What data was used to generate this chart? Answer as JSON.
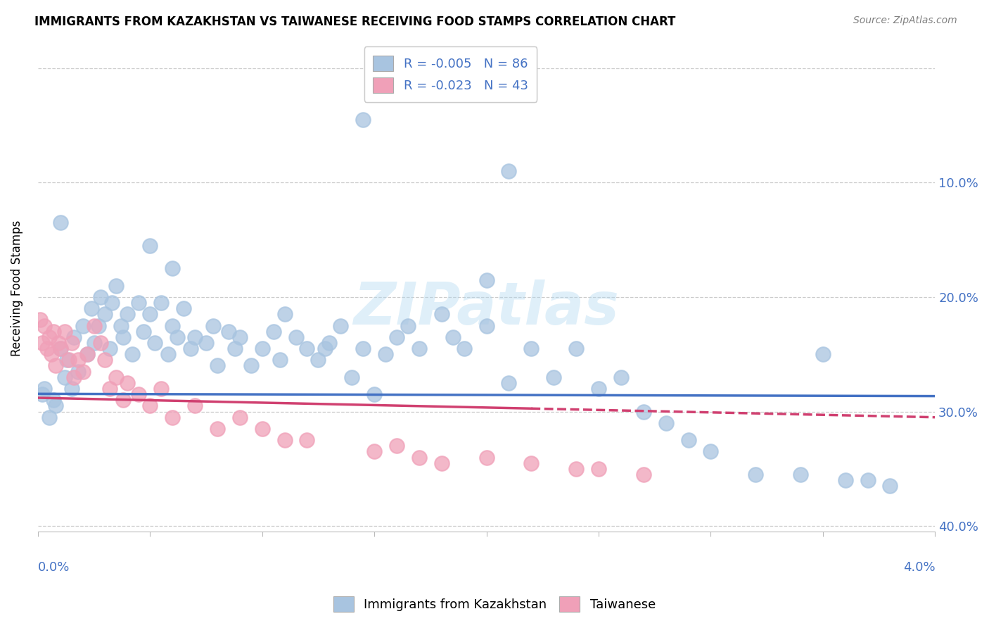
{
  "title": "IMMIGRANTS FROM KAZAKHSTAN VS TAIWANESE RECEIVING FOOD STAMPS CORRELATION CHART",
  "source": "Source: ZipAtlas.com",
  "ylabel": "Receiving Food Stamps",
  "legend_r1": "-0.005",
  "legend_n1": "86",
  "legend_r2": "-0.023",
  "legend_n2": "43",
  "legend_label1": "Immigrants from Kazakhstan",
  "legend_label2": "Taiwanese",
  "blue_color": "#a8c4e0",
  "pink_color": "#f0a0b8",
  "line_blue": "#4472c4",
  "line_pink": "#d04070",
  "xmin": 0.0,
  "xmax": 0.04,
  "ymin": -0.005,
  "ymax": 0.42,
  "ytick_vals": [
    0.0,
    0.1,
    0.2,
    0.3,
    0.4
  ],
  "ytick_labels": [
    "",
    "10.0%",
    "20.0%",
    "30.0%",
    "40.0%"
  ],
  "blue_x": [
    0.0002,
    0.0003,
    0.0005,
    0.0007,
    0.0008,
    0.001,
    0.0012,
    0.0013,
    0.0015,
    0.0016,
    0.0018,
    0.002,
    0.0022,
    0.0024,
    0.0025,
    0.0027,
    0.0028,
    0.003,
    0.0032,
    0.0033,
    0.0035,
    0.0037,
    0.0038,
    0.004,
    0.0042,
    0.0045,
    0.0047,
    0.005,
    0.0052,
    0.0055,
    0.0058,
    0.006,
    0.0062,
    0.0065,
    0.0068,
    0.007,
    0.0075,
    0.0078,
    0.008,
    0.0085,
    0.0088,
    0.009,
    0.0095,
    0.01,
    0.0105,
    0.0108,
    0.011,
    0.0115,
    0.012,
    0.0125,
    0.0128,
    0.013,
    0.0135,
    0.014,
    0.0145,
    0.015,
    0.0155,
    0.016,
    0.0165,
    0.017,
    0.018,
    0.0185,
    0.019,
    0.02,
    0.021,
    0.022,
    0.023,
    0.024,
    0.025,
    0.026,
    0.027,
    0.028,
    0.029,
    0.03,
    0.032,
    0.034,
    0.036,
    0.038,
    0.035,
    0.037,
    0.0145,
    0.021,
    0.001,
    0.005,
    0.02,
    0.006
  ],
  "blue_y": [
    0.115,
    0.12,
    0.095,
    0.11,
    0.105,
    0.155,
    0.13,
    0.145,
    0.12,
    0.165,
    0.135,
    0.175,
    0.15,
    0.19,
    0.16,
    0.175,
    0.2,
    0.185,
    0.155,
    0.195,
    0.21,
    0.175,
    0.165,
    0.185,
    0.15,
    0.195,
    0.17,
    0.185,
    0.16,
    0.195,
    0.15,
    0.175,
    0.165,
    0.19,
    0.155,
    0.165,
    0.16,
    0.175,
    0.14,
    0.17,
    0.155,
    0.165,
    0.14,
    0.155,
    0.17,
    0.145,
    0.185,
    0.165,
    0.155,
    0.145,
    0.155,
    0.16,
    0.175,
    0.13,
    0.155,
    0.115,
    0.15,
    0.165,
    0.175,
    0.155,
    0.185,
    0.165,
    0.155,
    0.175,
    0.125,
    0.155,
    0.13,
    0.155,
    0.12,
    0.13,
    0.1,
    0.09,
    0.075,
    0.065,
    0.045,
    0.045,
    0.04,
    0.035,
    0.15,
    0.04,
    0.355,
    0.31,
    0.265,
    0.245,
    0.215,
    0.225
  ],
  "pink_x": [
    0.0001,
    0.0002,
    0.0003,
    0.0004,
    0.0005,
    0.0006,
    0.0007,
    0.0008,
    0.0009,
    0.001,
    0.0012,
    0.0014,
    0.0015,
    0.0016,
    0.0018,
    0.002,
    0.0022,
    0.0025,
    0.0028,
    0.003,
    0.0032,
    0.0035,
    0.0038,
    0.004,
    0.0045,
    0.005,
    0.0055,
    0.006,
    0.007,
    0.008,
    0.009,
    0.01,
    0.011,
    0.012,
    0.015,
    0.016,
    0.017,
    0.018,
    0.02,
    0.022,
    0.024,
    0.025,
    0.027
  ],
  "pink_y": [
    0.18,
    0.16,
    0.175,
    0.155,
    0.165,
    0.15,
    0.17,
    0.14,
    0.16,
    0.155,
    0.17,
    0.145,
    0.16,
    0.13,
    0.145,
    0.135,
    0.15,
    0.175,
    0.16,
    0.145,
    0.12,
    0.13,
    0.11,
    0.125,
    0.115,
    0.105,
    0.12,
    0.095,
    0.105,
    0.085,
    0.095,
    0.085,
    0.075,
    0.075,
    0.065,
    0.07,
    0.06,
    0.055,
    0.06,
    0.055,
    0.05,
    0.05,
    0.045
  ],
  "blue_trend_y0": 0.1155,
  "blue_trend_y1": 0.1135,
  "pink_trend_y0": 0.112,
  "pink_trend_y1": 0.095
}
